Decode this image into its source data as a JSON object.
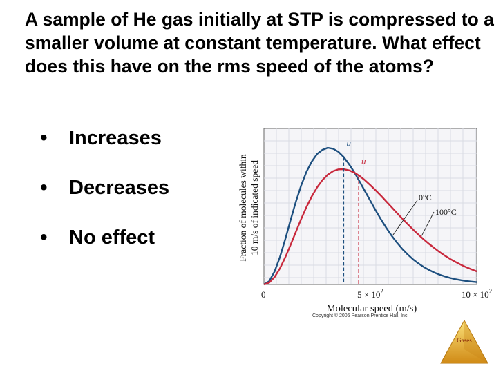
{
  "slide": {
    "question": "A sample of He gas initially at STP is compressed to a smaller volume at constant temperature.  What effect does this have on the rms speed of the atoms?",
    "options": [
      "Increases",
      "Decreases",
      "No effect"
    ],
    "copyright": "Copyright © 2006 Pearson Prentice Hall, Inc.",
    "badge_label": "Gases",
    "bullet_icon": "bullet-dot-icon"
  },
  "chart_data": {
    "type": "line",
    "title": "",
    "xlabel": "Molecular speed (m/s)",
    "ylabel_lines": [
      "Fraction of molecules within",
      "10 m/s of indicated speed"
    ],
    "xlim": [
      0,
      1000
    ],
    "ylim": [
      0,
      1
    ],
    "x_ticks": [
      {
        "value": 0,
        "base": "0",
        "exp": ""
      },
      {
        "value": 500,
        "base": "5 × 10",
        "exp": "2"
      },
      {
        "value": 1000,
        "base": "10 × 10",
        "exp": "2"
      }
    ],
    "grid": true,
    "series": [
      {
        "name": "0°C",
        "color": "#1d4f7f",
        "x": [
          0,
          25,
          50,
          75,
          100,
          125,
          150,
          175,
          200,
          225,
          250,
          275,
          300,
          325,
          350,
          375,
          400,
          425,
          450,
          475,
          500,
          525,
          550,
          575,
          600,
          625,
          650,
          675,
          700,
          725,
          750,
          775,
          800,
          825,
          850,
          875,
          900,
          925,
          950,
          975,
          1000
        ],
        "y": [
          0.0,
          0.025,
          0.095,
          0.2,
          0.33,
          0.47,
          0.605,
          0.725,
          0.825,
          0.9,
          0.955,
          0.985,
          1.0,
          0.993,
          0.97,
          0.932,
          0.88,
          0.82,
          0.752,
          0.682,
          0.612,
          0.542,
          0.476,
          0.414,
          0.357,
          0.306,
          0.26,
          0.22,
          0.185,
          0.155,
          0.129,
          0.107,
          0.088,
          0.072,
          0.059,
          0.048,
          0.039,
          0.032,
          0.026,
          0.021,
          0.017
        ]
      },
      {
        "name": "100°C",
        "color": "#c8283c",
        "x": [
          0,
          25,
          50,
          75,
          100,
          125,
          150,
          175,
          200,
          225,
          250,
          275,
          300,
          325,
          350,
          375,
          400,
          425,
          450,
          475,
          500,
          525,
          550,
          575,
          600,
          625,
          650,
          675,
          700,
          725,
          750,
          775,
          800,
          825,
          850,
          875,
          900,
          925,
          950,
          975,
          1000
        ],
        "y": [
          0.0,
          0.014,
          0.054,
          0.117,
          0.198,
          0.289,
          0.385,
          0.479,
          0.567,
          0.645,
          0.711,
          0.764,
          0.803,
          0.829,
          0.842,
          0.843,
          0.835,
          0.818,
          0.793,
          0.762,
          0.727,
          0.689,
          0.649,
          0.607,
          0.565,
          0.523,
          0.482,
          0.442,
          0.403,
          0.366,
          0.331,
          0.298,
          0.267,
          0.238,
          0.211,
          0.187,
          0.165,
          0.145,
          0.127,
          0.111,
          0.096
        ]
      }
    ],
    "markers": [
      {
        "label": "u",
        "series": "0°C",
        "x": 375,
        "color": "#1d4f7f",
        "dash": "blue"
      },
      {
        "label": "u",
        "series": "100°C",
        "x": 445,
        "color": "#c8283c",
        "dash": "red"
      }
    ],
    "annotations": [
      {
        "text": "0°C",
        "series": "0°C"
      },
      {
        "text": "100°C",
        "series": "100°C"
      }
    ]
  }
}
